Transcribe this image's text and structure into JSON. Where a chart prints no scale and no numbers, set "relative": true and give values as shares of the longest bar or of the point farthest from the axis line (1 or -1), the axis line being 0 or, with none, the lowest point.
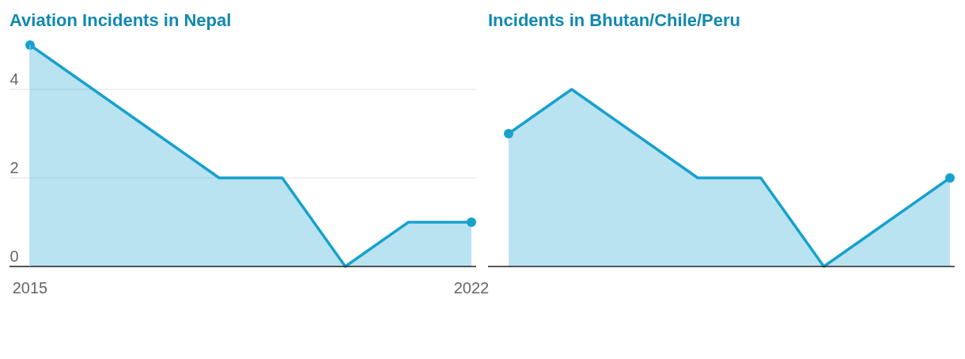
{
  "chart_data": [
    {
      "type": "area",
      "title": "Aviation Incidents in Nepal",
      "x": [
        2015,
        2016,
        2017,
        2018,
        2019,
        2020,
        2021,
        2022
      ],
      "series": [
        {
          "color": "#18a1cd",
          "values": [
            5,
            4,
            3,
            2,
            2,
            0,
            1,
            1
          ]
        }
      ],
      "xlim": [
        2015,
        2022
      ],
      "xticks": [
        2015,
        2022
      ],
      "ylim": [
        0,
        5
      ],
      "yticks": [
        0,
        2,
        4
      ],
      "grid": "y"
    },
    {
      "type": "area",
      "title": "Incidents in Bhutan/Chile/Peru",
      "categories": [
        null,
        null,
        null,
        null,
        null,
        null,
        null,
        null
      ],
      "series": [
        {
          "color": "#18a1cd",
          "values": [
            0.75,
            1,
            0.75,
            0.5,
            0.5,
            0,
            0.25,
            0.5
          ]
        }
      ],
      "relative": true
    }
  ]
}
